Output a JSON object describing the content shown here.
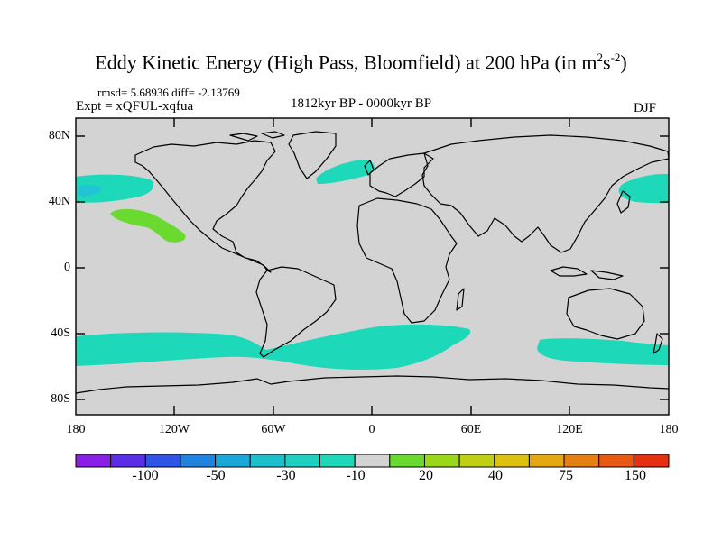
{
  "title": {
    "text": "Eddy Kinetic Energy (High Pass, Bloomfield) at 200 hPa (in m",
    "exp1": "2",
    "mid": "s",
    "exp2": "-2",
    "close": ")"
  },
  "stats": "rmsd= 5.68936 diff= -2.13769",
  "experiment": "Expt = xQFUL-xqfua",
  "period": "1812kyr BP - 0000kyr BP",
  "season": "DJF",
  "map": {
    "land_color": "#d3d3d3",
    "lat_labels": [
      "80N",
      "40N",
      "0",
      "40S",
      "80S"
    ],
    "lon_labels": [
      "180",
      "120W",
      "60W",
      "0",
      "60E",
      "120E",
      "180"
    ],
    "anomaly_regions": [
      {
        "name": "north-pacific-negative",
        "category": "-10",
        "color": "#1ed9b9"
      },
      {
        "name": "north-atlantic-negative",
        "category": "-10",
        "color": "#1ed9b9"
      },
      {
        "name": "west-pacific-negative",
        "category": "-10",
        "color": "#1ed9b9"
      },
      {
        "name": "subtropical-pacific-positive",
        "category": "20",
        "color": "#6ad930"
      },
      {
        "name": "southern-ocean-negative",
        "category": "-10",
        "color": "#1ed9b9"
      }
    ]
  },
  "colorbar": {
    "colors": [
      "#8a1fe6",
      "#5a2fe6",
      "#2f54e6",
      "#1f84e0",
      "#1aa8d8",
      "#1ec0cc",
      "#1ed0c0",
      "#1ed9b9",
      "#d3d3d3",
      "#6ad930",
      "#9ad61a",
      "#c0cf14",
      "#dcc10e",
      "#e6a812",
      "#e68012",
      "#e65a12",
      "#e63012"
    ],
    "labels": [
      "-100",
      "-50",
      "-30",
      "-10",
      "20",
      "40",
      "75",
      "150"
    ]
  }
}
